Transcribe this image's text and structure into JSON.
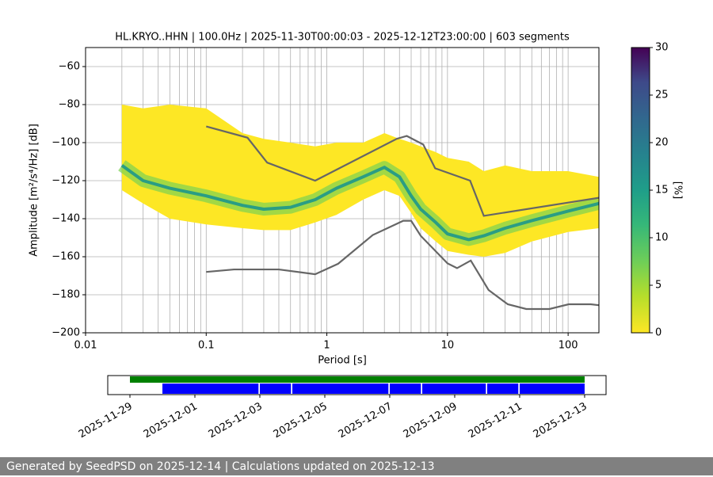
{
  "chart_data": [
    {
      "type": "ppsd",
      "title": "HL.KRYO..HHN | 100.0Hz | 2025-11-30T00:00:03 - 2025-12-12T23:00:00 | 603 segments",
      "xlabel": "Period [s]",
      "ylabel": "Amplitude [m²/s⁴/Hz] [dB]",
      "log_x": true,
      "grid": true,
      "xlim": [
        0.01,
        180
      ],
      "xticks": [
        0.01,
        0.1,
        1,
        10,
        100
      ],
      "ylim": [
        -200,
        -50
      ],
      "yticks": [
        {
          "value": -60,
          "label": "−60"
        },
        {
          "value": -80,
          "label": "−80"
        },
        {
          "value": -100,
          "label": "−100"
        },
        {
          "value": -120,
          "label": "−120"
        },
        {
          "value": -140,
          "label": "−140"
        },
        {
          "value": -160,
          "label": "−160"
        },
        {
          "value": -180,
          "label": "−180"
        },
        {
          "value": -200,
          "label": "−200"
        }
      ],
      "psd": {
        "x": [
          0.02,
          0.03,
          0.05,
          0.1,
          0.2,
          0.3,
          0.5,
          0.8,
          1.2,
          2,
          3,
          4,
          5,
          6,
          8,
          10,
          15,
          20,
          30,
          50,
          100,
          180
        ],
        "upper": [
          -80,
          -82,
          -80,
          -82,
          -95,
          -98,
          -100,
          -102,
          -100,
          -100,
          -95,
          -98,
          -100,
          -102,
          -105,
          -108,
          -110,
          -115,
          -112,
          -115,
          -115,
          -118
        ],
        "lower": [
          -125,
          -132,
          -140,
          -143,
          -145,
          -146,
          -146,
          -142,
          -138,
          -130,
          -125,
          -128,
          -137,
          -145,
          -152,
          -157,
          -159,
          -160,
          -158,
          -152,
          -147,
          -145
        ],
        "mode": [
          -112,
          -120,
          -124,
          -128,
          -133,
          -135,
          -134,
          -130,
          -124,
          -118,
          -113,
          -118,
          -128,
          -135,
          -142,
          -148,
          -151,
          -149,
          -145,
          -141,
          -136,
          -132
        ],
        "color": "#fde725",
        "mode_color": "#2a9d84"
      },
      "noise_models": [
        {
          "color": "#666666",
          "x": [
            0.1,
            0.22,
            0.32,
            0.8,
            3.8,
            4.6,
            6.3,
            7.9,
            15.4,
            20,
            180
          ],
          "values": [
            -91.5,
            -97.4,
            -110.5,
            -120,
            -98,
            -96.5,
            -101,
            -113.5,
            -120,
            -138.5,
            -129
          ]
        },
        {
          "color": "#666666",
          "x": [
            0.1,
            0.17,
            0.4,
            0.8,
            1.24,
            2.4,
            4.3,
            5,
            6,
            10,
            12,
            15.6,
            21.9,
            31.6,
            45,
            70,
            101,
            154,
            180
          ],
          "values": [
            -168,
            -166.7,
            -166.7,
            -169.2,
            -163.7,
            -148.6,
            -141.1,
            -141.1,
            -149,
            -163.5,
            -166,
            -162,
            -177.5,
            -185,
            -187.5,
            -187.5,
            -185,
            -185,
            -185.5
          ]
        }
      ],
      "colorbar": {
        "label": "[%]",
        "ylim": [
          0,
          30
        ],
        "yticks": [
          0,
          5,
          10,
          15,
          20,
          25,
          30
        ]
      }
    },
    {
      "type": "timeline",
      "xlim": [
        "2025-11-28T07:36",
        "2025-12-13T15:50"
      ],
      "xticks": [
        "2025-11-29",
        "2025-12-01",
        "2025-12-03",
        "2025-12-05",
        "2025-12-07",
        "2025-12-09",
        "2025-12-11",
        "2025-12-13"
      ],
      "bars": [
        {
          "color": "#008000",
          "segments": [
            [
              "2025-11-29T00:00",
              "2025-12-13T00:00"
            ]
          ]
        },
        {
          "color": "#0000ff",
          "segments": [
            [
              "2025-11-30T00:00",
              "2025-12-02T23:00"
            ],
            [
              "2025-12-03T00:00",
              "2025-12-03T23:00"
            ],
            [
              "2025-12-04T00:00",
              "2025-12-06T23:00"
            ],
            [
              "2025-12-07T00:00",
              "2025-12-07T23:00"
            ],
            [
              "2025-12-08T00:00",
              "2025-12-09T23:00"
            ],
            [
              "2025-12-10T00:00",
              "2025-12-10T23:00"
            ],
            [
              "2025-12-11T00:00",
              "2025-12-13T00:00"
            ]
          ]
        }
      ]
    }
  ],
  "footer": "Generated by SeedPSD on 2025-12-14 | Calculations updated on 2025-12-13"
}
